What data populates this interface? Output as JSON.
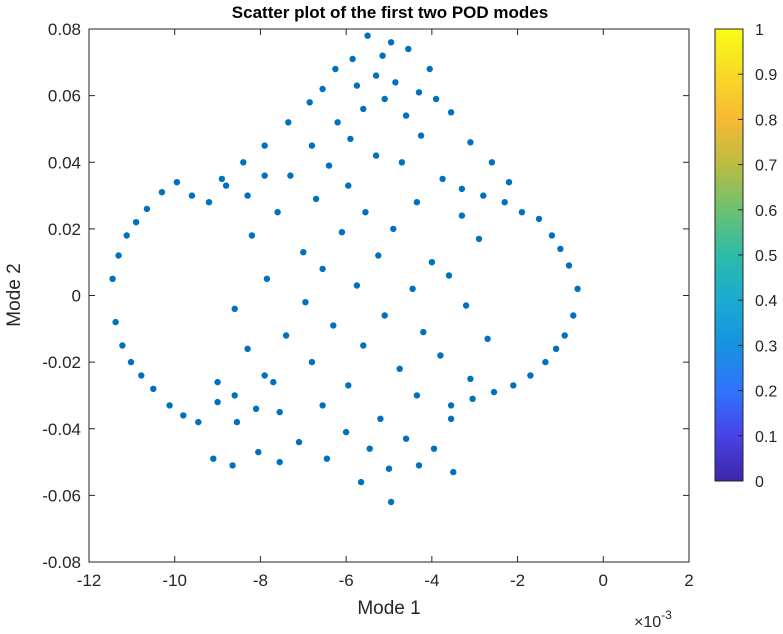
{
  "chart_data": {
    "type": "scatter",
    "title": "Scatter plot of the first two POD modes",
    "xlabel": "Mode 1",
    "ylabel": "Mode 2",
    "x_exponent_base": "×10",
    "x_exponent_power": "-3",
    "xlim": [
      -12,
      2
    ],
    "ylim": [
      -0.08,
      0.08
    ],
    "x_ticks": [
      -12,
      -10,
      -8,
      -6,
      -4,
      -2,
      0,
      2
    ],
    "x_tick_labels": [
      "-12",
      "-10",
      "-8",
      "-6",
      "-4",
      "-2",
      "0",
      "2"
    ],
    "y_ticks": [
      -0.08,
      -0.06,
      -0.04,
      -0.02,
      0,
      0.02,
      0.04,
      0.06,
      0.08
    ],
    "y_tick_labels": [
      "-0.08",
      "-0.06",
      "-0.04",
      "-0.02",
      "0",
      "0.02",
      "0.04",
      "0.06",
      "0.08"
    ],
    "marker_color": "#0072BD",
    "grid": false,
    "colorbar": {
      "ticks": [
        0,
        0.1,
        0.2,
        0.3,
        0.4,
        0.5,
        0.6,
        0.7,
        0.8,
        0.9,
        1
      ],
      "tick_labels": [
        "0",
        "0.1",
        "0.2",
        "0.3",
        "0.4",
        "0.5",
        "0.6",
        "0.7",
        "0.8",
        "0.9",
        "1"
      ],
      "colormap": "parula",
      "colormap_stops": [
        "#3E26A8",
        "#4743E7",
        "#2F74FC",
        "#1792E0",
        "#1AABD1",
        "#2EBBA7",
        "#6CC170",
        "#BBBC43",
        "#F6BA34",
        "#F8DA25",
        "#F9FB15"
      ]
    },
    "points": [
      [
        -11.45,
        0.005
      ],
      [
        -11.38,
        -0.008
      ],
      [
        -11.31,
        0.012
      ],
      [
        -11.22,
        -0.015
      ],
      [
        -11.12,
        0.018
      ],
      [
        -11.02,
        -0.02
      ],
      [
        -10.9,
        0.022
      ],
      [
        -10.78,
        -0.024
      ],
      [
        -10.65,
        0.026
      ],
      [
        -10.5,
        -0.028
      ],
      [
        -10.3,
        0.031
      ],
      [
        -10.12,
        -0.033
      ],
      [
        -9.95,
        0.034
      ],
      [
        -9.8,
        -0.036
      ],
      [
        -9.6,
        0.03
      ],
      [
        -9.45,
        -0.038
      ],
      [
        -9.2,
        0.028
      ],
      [
        -9.0,
        -0.032
      ],
      [
        -8.8,
        0.033
      ],
      [
        -8.6,
        -0.03
      ],
      [
        -8.3,
        0.03
      ],
      [
        -8.1,
        -0.034
      ],
      [
        -7.9,
        0.036
      ],
      [
        -7.7,
        -0.026
      ],
      [
        -0.6,
        0.002
      ],
      [
        -0.7,
        -0.006
      ],
      [
        -0.8,
        0.009
      ],
      [
        -0.9,
        -0.012
      ],
      [
        -1.0,
        0.014
      ],
      [
        -1.1,
        -0.016
      ],
      [
        -1.2,
        0.018
      ],
      [
        -1.35,
        -0.02
      ],
      [
        -1.5,
        0.023
      ],
      [
        -1.7,
        -0.024
      ],
      [
        -1.9,
        0.025
      ],
      [
        -2.1,
        -0.027
      ],
      [
        -2.3,
        0.028
      ],
      [
        -2.55,
        -0.029
      ],
      [
        -2.8,
        0.03
      ],
      [
        -3.05,
        -0.031
      ],
      [
        -3.3,
        0.032
      ],
      [
        -3.55,
        -0.033
      ],
      [
        -5.5,
        0.078
      ],
      [
        -4.95,
        0.076
      ],
      [
        -4.55,
        0.074
      ],
      [
        -5.15,
        0.072
      ],
      [
        -5.85,
        0.071
      ],
      [
        -6.25,
        0.068
      ],
      [
        -4.05,
        0.068
      ],
      [
        -5.3,
        0.066
      ],
      [
        -5.75,
        0.063
      ],
      [
        -4.85,
        0.064
      ],
      [
        -6.55,
        0.062
      ],
      [
        -4.3,
        0.061
      ],
      [
        -5.1,
        0.059
      ],
      [
        -6.85,
        0.058
      ],
      [
        -3.9,
        0.059
      ],
      [
        -5.6,
        0.056
      ],
      [
        -4.6,
        0.054
      ],
      [
        -6.2,
        0.052
      ],
      [
        -3.55,
        0.055
      ],
      [
        -7.35,
        0.052
      ],
      [
        -5.9,
        0.047
      ],
      [
        -4.25,
        0.048
      ],
      [
        -6.8,
        0.045
      ],
      [
        -3.1,
        0.046
      ],
      [
        -7.9,
        0.045
      ],
      [
        -5.3,
        0.042
      ],
      [
        -4.7,
        0.04
      ],
      [
        -6.4,
        0.039
      ],
      [
        -2.6,
        0.04
      ],
      [
        -8.4,
        0.04
      ],
      [
        -7.3,
        0.036
      ],
      [
        -3.75,
        0.035
      ],
      [
        -5.95,
        0.033
      ],
      [
        -8.9,
        0.035
      ],
      [
        -2.2,
        0.034
      ],
      [
        -6.7,
        0.029
      ],
      [
        -4.35,
        0.028
      ],
      [
        -5.55,
        0.025
      ],
      [
        -7.6,
        0.025
      ],
      [
        -3.3,
        0.024
      ],
      [
        -4.9,
        0.02
      ],
      [
        -6.1,
        0.019
      ],
      [
        -8.2,
        0.018
      ],
      [
        -2.9,
        0.017
      ],
      [
        -7.0,
        0.013
      ],
      [
        -5.25,
        0.012
      ],
      [
        -4.0,
        0.01
      ],
      [
        -6.55,
        0.008
      ],
      [
        -3.6,
        0.006
      ],
      [
        -7.85,
        0.005
      ],
      [
        -5.75,
        0.003
      ],
      [
        -4.45,
        0.002
      ],
      [
        -6.95,
        -0.002
      ],
      [
        -3.2,
        -0.003
      ],
      [
        -8.6,
        -0.004
      ],
      [
        -5.1,
        -0.006
      ],
      [
        -6.3,
        -0.009
      ],
      [
        -4.2,
        -0.011
      ],
      [
        -7.4,
        -0.012
      ],
      [
        -2.7,
        -0.013
      ],
      [
        -5.6,
        -0.015
      ],
      [
        -8.3,
        -0.016
      ],
      [
        -3.8,
        -0.018
      ],
      [
        -6.8,
        -0.02
      ],
      [
        -4.75,
        -0.022
      ],
      [
        -7.9,
        -0.024
      ],
      [
        -3.1,
        -0.025
      ],
      [
        -5.95,
        -0.027
      ],
      [
        -9.0,
        -0.026
      ],
      [
        -4.35,
        -0.03
      ],
      [
        -6.55,
        -0.033
      ],
      [
        -7.55,
        -0.035
      ],
      [
        -5.2,
        -0.037
      ],
      [
        -3.55,
        -0.037
      ],
      [
        -8.55,
        -0.038
      ],
      [
        -6.0,
        -0.041
      ],
      [
        -4.6,
        -0.043
      ],
      [
        -7.1,
        -0.044
      ],
      [
        -5.45,
        -0.046
      ],
      [
        -3.95,
        -0.046
      ],
      [
        -8.05,
        -0.047
      ],
      [
        -6.45,
        -0.049
      ],
      [
        -5.0,
        -0.052
      ],
      [
        -7.55,
        -0.05
      ],
      [
        -4.3,
        -0.051
      ],
      [
        -5.65,
        -0.056
      ],
      [
        -9.1,
        -0.049
      ],
      [
        -8.65,
        -0.051
      ],
      [
        -3.5,
        -0.053
      ],
      [
        -4.95,
        -0.062
      ]
    ]
  }
}
